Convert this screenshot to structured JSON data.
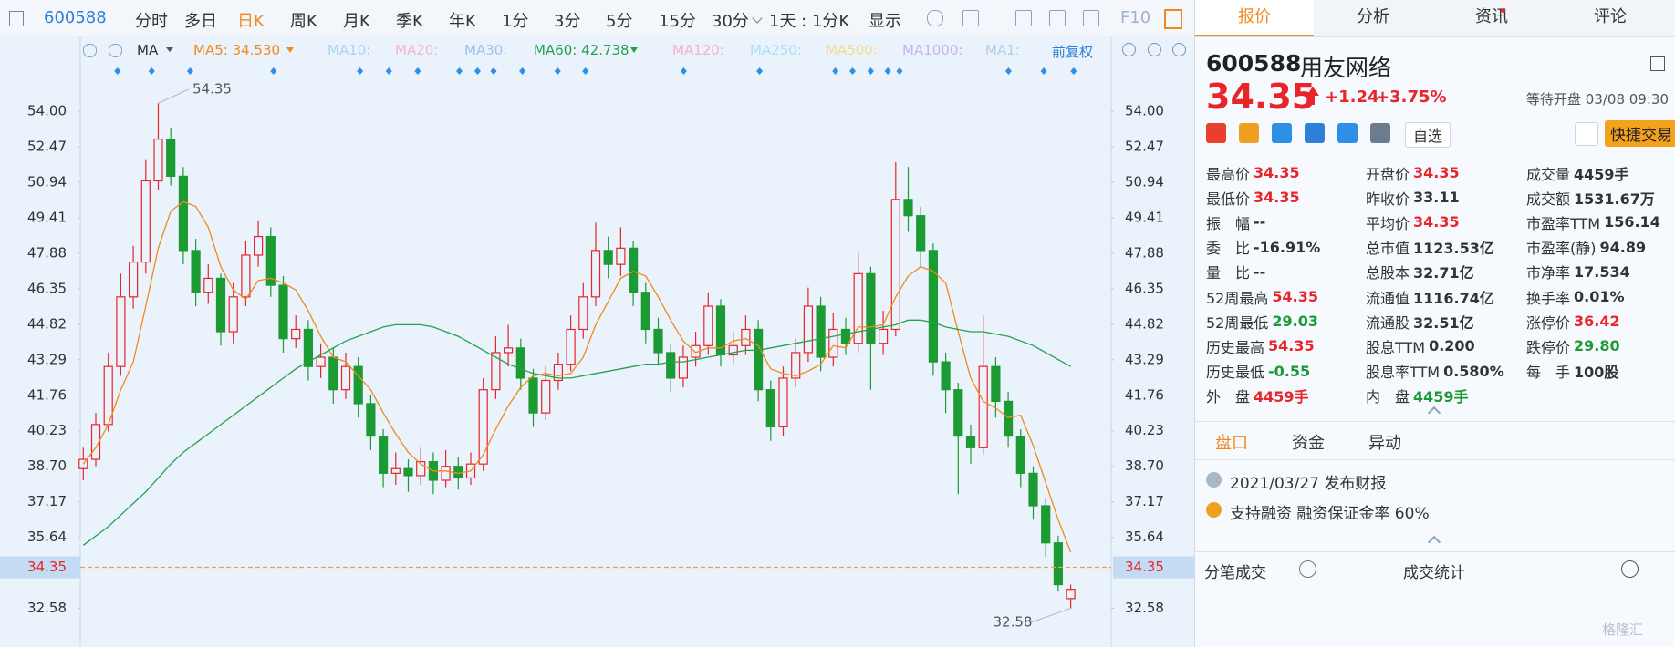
{
  "toolbar": {
    "code": "600588",
    "tabs": [
      "分时",
      "多日",
      "日K",
      "周K",
      "月K",
      "季K",
      "年K",
      "1分",
      "3分",
      "5分",
      "15分",
      "30分"
    ],
    "active_tab": 2,
    "period": "1天 : 1分K",
    "display": "显示",
    "f10": "F10"
  },
  "ma_bar": {
    "type": "MA",
    "items": [
      {
        "text": "MA5: 34.530",
        "color": "#f08a1c"
      },
      {
        "text": "MA10:",
        "color": "#a9d3f2"
      },
      {
        "text": "MA20:",
        "color": "#f3b6cf"
      },
      {
        "text": "MA30:",
        "color": "#9ec3ea"
      },
      {
        "text": "MA60: 42.738",
        "color": "#24a24a"
      },
      {
        "text": "MA120:",
        "color": "#f3b0c6"
      },
      {
        "text": "MA250:",
        "color": "#a8e2f2"
      },
      {
        "text": "MA500:",
        "color": "#f2dc8e"
      },
      {
        "text": "MA1000:",
        "color": "#c7b3ea"
      },
      {
        "text": "MA1:",
        "color": "#b6cde6"
      }
    ],
    "adjust": "前复权"
  },
  "chart_data": {
    "type": "candlestick",
    "up_color": "#e8262a",
    "down_color": "#1c9a33",
    "open": [
      38.6,
      39.0,
      40.5,
      43.0,
      46.0,
      47.5,
      51.0,
      52.8,
      51.2,
      48.0,
      46.2,
      46.8,
      44.5,
      46.0,
      47.8,
      48.6,
      46.5,
      44.2,
      44.6,
      43.0,
      43.4,
      42.0,
      43.0,
      41.4,
      40.0,
      38.4,
      38.6,
      38.3,
      38.9,
      38.1,
      38.7,
      38.2,
      38.8,
      42.0,
      43.6,
      43.8,
      42.5,
      41.0,
      42.4,
      43.1,
      44.6,
      46.0,
      48.0,
      47.4,
      48.1,
      46.2,
      44.6,
      43.6,
      42.5,
      43.4,
      43.9,
      45.6,
      43.5,
      43.9,
      44.6,
      42.0,
      40.4,
      42.5,
      43.6,
      45.6,
      43.4,
      44.6,
      44.0,
      47.0,
      44.0,
      44.6,
      50.2,
      49.5,
      48.0,
      43.2,
      42.0,
      40.0,
      39.5,
      43.0,
      41.5,
      40.0,
      38.4,
      37.0,
      35.4,
      33.0
    ],
    "high": [
      39.5,
      41.0,
      43.6,
      47.0,
      48.2,
      51.9,
      54.35,
      53.3,
      51.6,
      48.5,
      47.4,
      47.0,
      46.6,
      48.4,
      49.3,
      49.0,
      46.9,
      45.2,
      45.0,
      44.0,
      43.8,
      43.6,
      43.4,
      41.8,
      40.3,
      39.3,
      39.0,
      39.5,
      39.3,
      39.4,
      39.1,
      39.3,
      42.5,
      44.3,
      44.8,
      44.2,
      42.9,
      43.0,
      43.6,
      45.2,
      46.6,
      49.2,
      48.6,
      49.0,
      48.4,
      46.6,
      45.1,
      44.0,
      43.9,
      44.5,
      46.2,
      45.9,
      44.5,
      45.2,
      45.0,
      42.4,
      43.0,
      44.2,
      46.4,
      46.0,
      45.3,
      45.1,
      47.9,
      47.3,
      45.4,
      51.8,
      51.6,
      49.9,
      48.3,
      43.6,
      42.3,
      40.5,
      45.2,
      43.4,
      41.9,
      40.3,
      38.7,
      37.3,
      35.7,
      33.6
    ],
    "low": [
      38.1,
      38.7,
      40.2,
      42.6,
      45.5,
      47.0,
      50.6,
      50.8,
      47.4,
      45.6,
      45.7,
      43.9,
      44.0,
      45.6,
      47.3,
      46.0,
      43.6,
      43.8,
      42.4,
      42.5,
      41.4,
      41.6,
      40.8,
      39.4,
      37.8,
      37.9,
      37.6,
      37.9,
      37.5,
      37.8,
      37.7,
      37.9,
      38.5,
      41.6,
      43.0,
      42.0,
      40.4,
      40.7,
      42.0,
      42.8,
      44.2,
      45.6,
      46.8,
      46.9,
      45.6,
      44.0,
      43.1,
      41.9,
      42.1,
      43.0,
      43.5,
      43.0,
      43.1,
      43.5,
      41.5,
      39.8,
      40.0,
      42.1,
      43.2,
      42.8,
      43.0,
      43.5,
      43.6,
      42.0,
      43.5,
      44.3,
      48.8,
      47.3,
      42.6,
      41.0,
      37.5,
      38.8,
      39.2,
      40.8,
      39.5,
      37.8,
      36.4,
      34.8,
      33.3,
      32.58
    ],
    "close": [
      39.0,
      40.5,
      43.0,
      46.0,
      47.5,
      51.0,
      52.8,
      51.2,
      48.0,
      46.2,
      46.8,
      44.5,
      46.0,
      47.8,
      48.6,
      46.5,
      44.2,
      44.6,
      43.0,
      43.4,
      42.0,
      43.0,
      41.4,
      40.0,
      38.4,
      38.6,
      38.3,
      38.9,
      38.1,
      38.7,
      38.2,
      38.8,
      42.0,
      43.6,
      43.8,
      42.5,
      41.0,
      42.4,
      43.1,
      44.6,
      46.0,
      48.0,
      47.4,
      48.1,
      46.2,
      44.6,
      43.6,
      42.5,
      43.4,
      43.9,
      45.6,
      43.5,
      43.9,
      44.6,
      42.0,
      40.4,
      42.5,
      43.6,
      45.6,
      43.4,
      44.6,
      44.0,
      47.0,
      44.0,
      44.6,
      50.2,
      49.5,
      48.0,
      43.2,
      42.0,
      40.0,
      39.5,
      43.0,
      41.5,
      40.0,
      38.4,
      37.0,
      35.4,
      33.6,
      33.4
    ],
    "ma_lines": [
      {
        "color": "#f08a1c",
        "values": [
          38.8,
          39.5,
          40.5,
          42.0,
          43.2,
          45.6,
          48.1,
          49.7,
          50.1,
          49.9,
          49.0,
          47.3,
          46.3,
          45.9,
          46.7,
          46.8,
          46.6,
          46.3,
          45.4,
          44.3,
          43.4,
          43.2,
          42.6,
          42.0,
          41.0,
          40.1,
          39.3,
          38.8,
          38.5,
          38.5,
          38.4,
          38.5,
          39.2,
          40.3,
          41.3,
          42.1,
          42.6,
          42.7,
          42.6,
          42.7,
          43.4,
          44.8,
          45.8,
          46.8,
          47.1,
          46.9,
          46.0,
          45.0,
          44.1,
          43.6,
          43.8,
          43.8,
          44.1,
          44.2,
          43.9,
          42.9,
          42.7,
          42.6,
          42.8,
          43.1,
          43.9,
          43.8,
          44.7,
          44.7,
          44.8,
          46.0,
          46.9,
          47.3,
          47.1,
          46.6,
          44.5,
          42.5,
          41.5,
          41.2,
          40.8,
          40.9,
          39.6,
          38.0,
          36.4,
          35.0
        ]
      },
      {
        "color": "#24a24a",
        "values": [
          35.3,
          35.7,
          36.1,
          36.6,
          37.1,
          37.6,
          38.2,
          38.8,
          39.3,
          39.7,
          40.1,
          40.5,
          40.9,
          41.3,
          41.7,
          42.1,
          42.5,
          42.9,
          43.2,
          43.5,
          43.8,
          44.1,
          44.3,
          44.5,
          44.7,
          44.8,
          44.8,
          44.8,
          44.7,
          44.5,
          44.3,
          44.0,
          43.7,
          43.4,
          43.1,
          42.9,
          42.7,
          42.6,
          42.5,
          42.5,
          42.6,
          42.7,
          42.8,
          42.9,
          43.0,
          43.1,
          43.1,
          43.2,
          43.2,
          43.3,
          43.4,
          43.5,
          43.6,
          43.7,
          43.7,
          43.8,
          43.9,
          44.0,
          44.1,
          44.2,
          44.3,
          44.4,
          44.5,
          44.6,
          44.7,
          44.8,
          45.0,
          45.0,
          44.9,
          44.7,
          44.6,
          44.5,
          44.5,
          44.4,
          44.3,
          44.1,
          43.9,
          43.6,
          43.3,
          43.0
        ]
      }
    ],
    "last_price": 34.35,
    "last_price_color": "#f0a040",
    "ylim": [
      31.07,
      55.81
    ],
    "yticks": [
      {
        "value": 54,
        "label": "54.00"
      },
      52.47,
      50.94,
      49.41,
      47.88,
      46.35,
      44.82,
      43.29,
      41.76,
      40.23,
      {
        "value": 38.7,
        "label": "38.70"
      },
      37.17,
      35.64,
      32.58
    ]
  },
  "side": {
    "tabs": [
      "报价",
      "分析",
      "资讯",
      "评论"
    ],
    "active_tab": 0,
    "code": "600588",
    "name": "用友网络",
    "price": "34.35",
    "change": "+1.24",
    "change_pct": "+3.75%",
    "status": "等待开盘 03/08 09:30",
    "watch": "自选",
    "trade": "快捷交易",
    "quote_grid": [
      [
        {
          "label": "最高价",
          "value": "34.35",
          "color": "#e8262a"
        },
        {
          "label": "开盘价",
          "value": "34.35",
          "color": "#e8262a"
        },
        {
          "label": "成交量",
          "value": "4459手",
          "color": "#333333"
        }
      ],
      [
        {
          "label": "最低价",
          "value": "34.35",
          "color": "#e8262a"
        },
        {
          "label": "昨收价",
          "value": "33.11",
          "color": "#333333"
        },
        {
          "label": "成交额",
          "value": "1531.67万",
          "color": "#333333"
        }
      ],
      [
        {
          "label": "振　幅",
          "value": "--",
          "color": "#333333"
        },
        {
          "label": "平均价",
          "value": "34.35",
          "color": "#e8262a"
        },
        {
          "label": "市盈率TTM",
          "value": "156.14",
          "color": "#333333"
        }
      ],
      [
        {
          "label": "委　比",
          "value": "-16.91%",
          "color": "#333333"
        },
        {
          "label": "总市值",
          "value": "1123.53亿",
          "color": "#333333"
        },
        {
          "label": "市盈率(静)",
          "value": "94.89",
          "color": "#333333"
        }
      ],
      [
        {
          "label": "量　比",
          "value": "--",
          "color": "#333333"
        },
        {
          "label": "总股本",
          "value": "32.71亿",
          "color": "#333333"
        },
        {
          "label": "市净率",
          "value": "17.534",
          "color": "#333333"
        }
      ],
      [
        {
          "label": "52周最高",
          "value": "54.35",
          "color": "#e8262a"
        },
        {
          "label": "流通值",
          "value": "1116.74亿",
          "color": "#333333"
        },
        {
          "label": "换手率",
          "value": "0.01%",
          "color": "#333333"
        }
      ],
      [
        {
          "label": "52周最低",
          "value": "29.03",
          "color": "#1c9a33"
        },
        {
          "label": "流通股",
          "value": "32.51亿",
          "color": "#333333"
        },
        {
          "label": "涨停价",
          "value": "36.42",
          "color": "#e8262a"
        }
      ],
      [
        {
          "label": "历史最高",
          "value": "54.35",
          "color": "#e8262a"
        },
        {
          "label": "股息TTM",
          "value": "0.200",
          "color": "#333333"
        },
        {
          "label": "跌停价",
          "value": "29.80",
          "color": "#1c9a33"
        }
      ],
      [
        {
          "label": "历史最低",
          "value": "-0.55",
          "color": "#1c9a33"
        },
        {
          "label": "股息率TTM",
          "value": "0.580%",
          "color": "#333333"
        },
        {
          "label": "每　手",
          "value": "100股",
          "color": "#333333"
        }
      ],
      [
        {
          "label": "外　盘",
          "value": "4459手",
          "color": "#e8262a"
        },
        {
          "label": "内　盘",
          "value": "4459手",
          "color": "#1c9a33"
        }
      ]
    ],
    "sub_tabs": [
      "盘口",
      "资金",
      "异动"
    ],
    "news": [
      "2021/03/27  发布财报",
      "支持融资  融资保证金率 60%"
    ],
    "footer": [
      "分笔成交",
      "成交统计"
    ],
    "watermark": "格隆汇"
  }
}
